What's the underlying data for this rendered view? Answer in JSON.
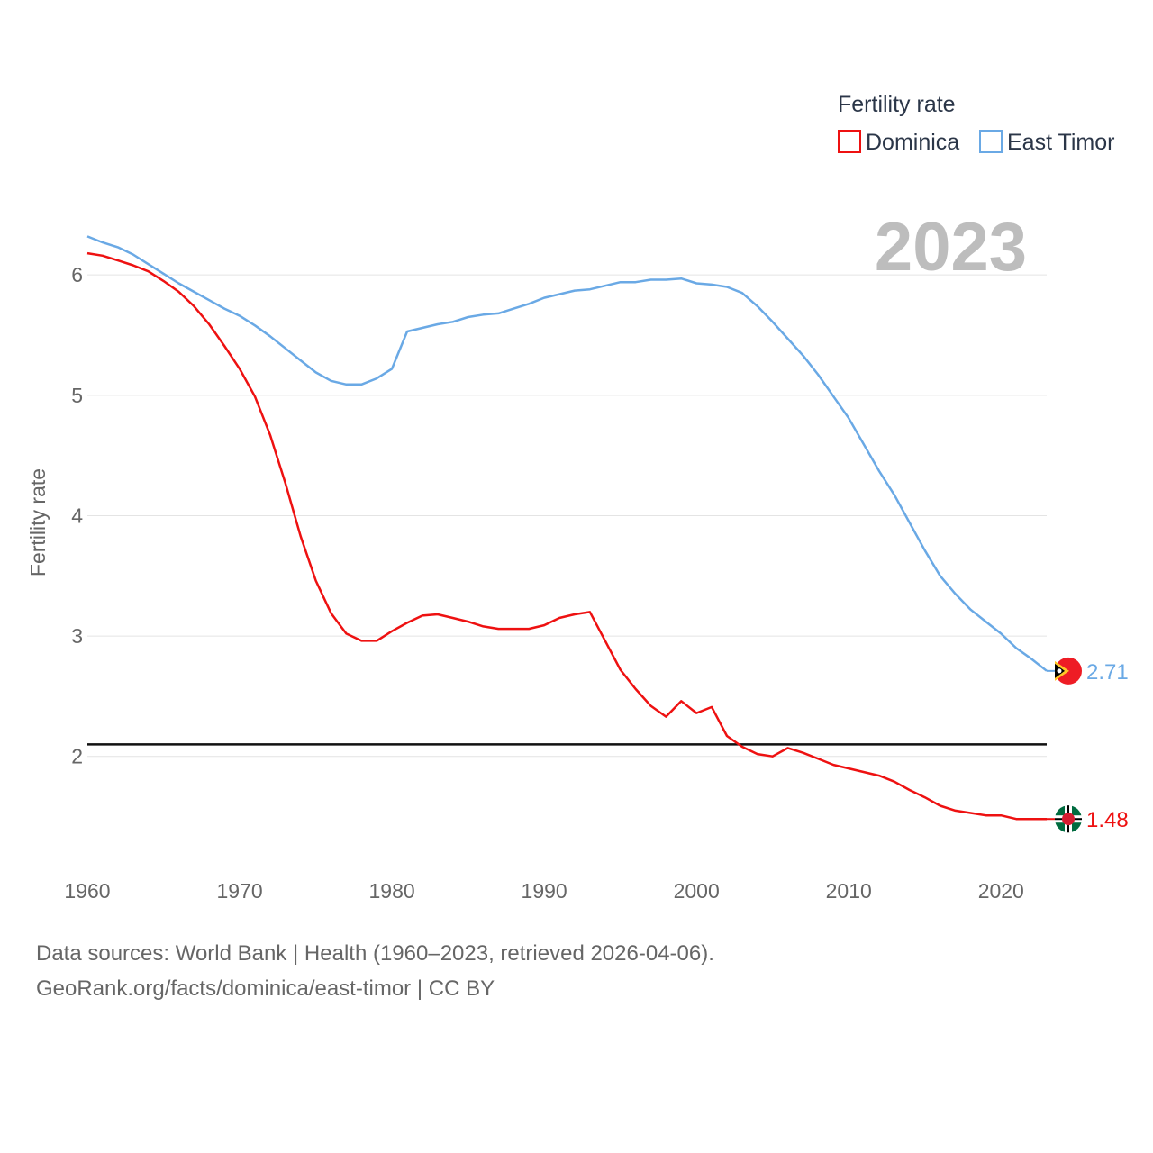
{
  "chart_data": {
    "type": "line",
    "legend_title": "Fertility rate",
    "ylabel": "Fertility rate",
    "xlabel": "",
    "year_label": "2023",
    "xlim": [
      1960,
      2023
    ],
    "ylim": [
      1.1,
      6.6
    ],
    "x_ticks": [
      1960,
      1970,
      1980,
      1990,
      2000,
      2010,
      2020
    ],
    "y_ticks": [
      2,
      3,
      4,
      5,
      6
    ],
    "reference_line": 2.1,
    "x": [
      1960,
      1961,
      1962,
      1963,
      1964,
      1965,
      1966,
      1967,
      1968,
      1969,
      1970,
      1971,
      1972,
      1973,
      1974,
      1975,
      1976,
      1977,
      1978,
      1979,
      1980,
      1981,
      1982,
      1983,
      1984,
      1985,
      1986,
      1987,
      1988,
      1989,
      1990,
      1991,
      1992,
      1993,
      1994,
      1995,
      1996,
      1997,
      1998,
      1999,
      2000,
      2001,
      2002,
      2003,
      2004,
      2005,
      2006,
      2007,
      2008,
      2009,
      2010,
      2011,
      2012,
      2013,
      2014,
      2015,
      2016,
      2017,
      2018,
      2019,
      2020,
      2021,
      2022,
      2023
    ],
    "series": [
      {
        "name": "Dominica",
        "color": "#ee1111",
        "end_label": "1.48",
        "flag": "dominica-flag-icon",
        "values": [
          6.18,
          6.16,
          6.12,
          6.08,
          6.03,
          5.95,
          5.86,
          5.74,
          5.59,
          5.41,
          5.22,
          4.99,
          4.67,
          4.27,
          3.83,
          3.46,
          3.19,
          3.02,
          2.96,
          2.96,
          3.04,
          3.11,
          3.17,
          3.18,
          3.15,
          3.12,
          3.08,
          3.06,
          3.06,
          3.06,
          3.09,
          3.15,
          3.18,
          3.2,
          2.96,
          2.72,
          2.56,
          2.42,
          2.33,
          2.46,
          2.36,
          2.41,
          2.17,
          2.08,
          2.02,
          2.0,
          2.07,
          2.03,
          1.98,
          1.93,
          1.9,
          1.87,
          1.84,
          1.79,
          1.72,
          1.66,
          1.59,
          1.55,
          1.53,
          1.51,
          1.51,
          1.48,
          1.48,
          1.48
        ]
      },
      {
        "name": "East Timor",
        "color": "#6aa9e5",
        "end_label": "2.71",
        "flag": "east-timor-flag-icon",
        "values": [
          6.32,
          6.27,
          6.23,
          6.17,
          6.09,
          6.01,
          5.93,
          5.86,
          5.79,
          5.72,
          5.66,
          5.58,
          5.49,
          5.39,
          5.29,
          5.19,
          5.12,
          5.09,
          5.09,
          5.14,
          5.22,
          5.53,
          5.56,
          5.59,
          5.61,
          5.65,
          5.67,
          5.68,
          5.72,
          5.76,
          5.81,
          5.84,
          5.87,
          5.88,
          5.91,
          5.94,
          5.94,
          5.96,
          5.96,
          5.97,
          5.93,
          5.92,
          5.9,
          5.85,
          5.74,
          5.61,
          5.47,
          5.33,
          5.17,
          4.99,
          4.81,
          4.59,
          4.37,
          4.17,
          3.94,
          3.71,
          3.5,
          3.35,
          3.22,
          3.12,
          3.02,
          2.9,
          2.81,
          2.71
        ]
      }
    ]
  },
  "footer": {
    "source_line": "Data sources: World Bank | Health (1960–2023, retrieved 2026-04-06).",
    "credit_line": "GeoRank.org/facts/dominica/east-timor | CC BY"
  }
}
